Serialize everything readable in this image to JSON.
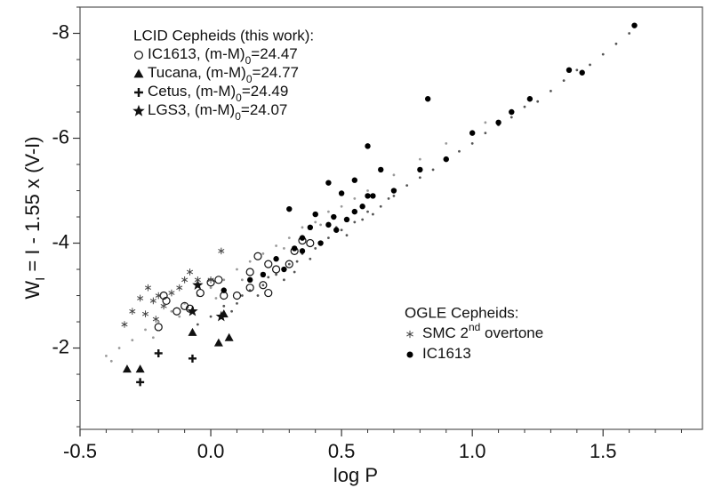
{
  "chart_data": {
    "type": "scatter",
    "x_label": "log P",
    "y_label": {
      "main": "W",
      "sub": "I",
      "rest": " = I - 1.55 x (V-I)"
    },
    "xlim": [
      -0.5,
      1.88
    ],
    "ylim": [
      -0.45,
      -8.5
    ],
    "xticks": [
      -0.5,
      {
        "value": 0,
        "label": "0.0"
      },
      0.5,
      {
        "value": 1,
        "label": "1.0"
      },
      1.5
    ],
    "yticks": [
      -8,
      -6,
      -4,
      -2
    ],
    "xminorticks": [
      -0.4,
      -0.3,
      -0.2,
      -0.1,
      0.1,
      0.2,
      0.3,
      0.4,
      0.6,
      0.7,
      0.8,
      0.9,
      1.1,
      1.2,
      1.3,
      1.4,
      1.6,
      1.7,
      1.8
    ],
    "yminorticks": [
      -8.5,
      -7.5,
      -7,
      -6.5,
      -5.5,
      -5,
      -4.5,
      -3.5,
      -3,
      -2.5,
      -1.5,
      -1,
      -0.5
    ],
    "legends": [
      {
        "title": "LCID Cepheids (this work):",
        "entries": [
          0,
          1,
          2,
          3
        ]
      },
      {
        "title": "OGLE Cepheids:",
        "entries": [
          4,
          5
        ]
      }
    ],
    "series": [
      {
        "name": {
          "main": "IC1613, (m-M)",
          "sub": "0",
          "rest": "=24.47"
        },
        "marker": "open-circle",
        "color": "#111111",
        "x": [
          -0.2,
          -0.18,
          -0.17,
          -0.13,
          -0.1,
          -0.08,
          -0.04,
          0.0,
          0.03,
          0.05,
          0.1,
          0.15,
          0.2,
          0.22,
          0.25,
          0.22,
          0.18,
          0.3,
          0.32,
          0.35,
          0.38,
          0.15
        ],
        "values": [
          -2.4,
          -3.0,
          -2.9,
          -2.7,
          -2.8,
          -2.75,
          -3.05,
          -3.25,
          -3.3,
          -3.0,
          -3.0,
          -3.15,
          -3.2,
          -3.05,
          -3.5,
          -3.6,
          -3.75,
          -3.6,
          -3.85,
          -4.05,
          -4.0,
          -3.45
        ]
      },
      {
        "name": {
          "main": "Tucana, (m-M)",
          "sub": "0",
          "rest": "=24.77"
        },
        "marker": "triangle",
        "color": "#111111",
        "x": [
          -0.32,
          -0.27,
          -0.07,
          0.03,
          0.07,
          0.05
        ],
        "values": [
          -1.6,
          -1.6,
          -2.3,
          -2.1,
          -2.2,
          -2.65
        ]
      },
      {
        "name": {
          "main": "Cetus, (m-M)",
          "sub": "0",
          "rest": "=24.49"
        },
        "marker": "plus",
        "color": "#111111",
        "x": [
          -0.27,
          -0.2,
          -0.07
        ],
        "values": [
          -1.35,
          -1.9,
          -1.8
        ]
      },
      {
        "name": {
          "main": "LGS3, (m-M)",
          "sub": "0",
          "rest": "=24.07"
        },
        "marker": "star",
        "color": "#111111",
        "x": [
          -0.07,
          0.04,
          -0.05
        ],
        "values": [
          -2.7,
          -2.6,
          -3.2
        ]
      },
      {
        "name": {
          "main": "SMC 2",
          "sup": "nd",
          "rest": " overtone"
        },
        "marker": "asterisk",
        "color": "#444444",
        "x": [
          -0.33,
          -0.3,
          -0.27,
          -0.25,
          -0.22,
          -0.2,
          -0.18,
          -0.15,
          -0.12,
          -0.1,
          -0.08,
          -0.05,
          0.0,
          0.04,
          -0.21,
          -0.24
        ],
        "values": [
          -2.45,
          -2.7,
          -2.95,
          -2.65,
          -2.9,
          -3.0,
          -2.8,
          -3.05,
          -3.15,
          -3.3,
          -3.45,
          -3.3,
          -3.3,
          -3.85,
          -2.55,
          -3.15
        ]
      },
      {
        "name": {
          "main": "IC1613"
        },
        "marker": "dot",
        "color": "#000000",
        "x": [
          1.62,
          1.37,
          1.42,
          0.83,
          1.22,
          1.0,
          0.6,
          0.3,
          0.5,
          0.45,
          0.55,
          0.65,
          0.7,
          0.4,
          0.35,
          0.38,
          0.42,
          0.45,
          0.48,
          0.52,
          0.58,
          0.62,
          0.8,
          0.9,
          1.1,
          1.15,
          0.25,
          0.28,
          0.32,
          0.2,
          0.15,
          0.05,
          0.55,
          0.35,
          0.6,
          0.47
        ],
        "values": [
          -8.15,
          -7.3,
          -7.25,
          -6.75,
          -6.75,
          -6.1,
          -5.85,
          -4.65,
          -4.95,
          -5.15,
          -5.2,
          -5.4,
          -5.0,
          -4.55,
          -4.1,
          -4.3,
          -4.0,
          -4.35,
          -4.25,
          -4.45,
          -4.7,
          -4.9,
          -5.4,
          -5.6,
          -6.3,
          -6.5,
          -3.7,
          -3.5,
          -3.9,
          -3.4,
          -3.3,
          -3.1,
          -4.6,
          -3.85,
          -4.9,
          -4.5
        ]
      },
      {
        "marker": "small",
        "color": "#9a9a9a",
        "x": [
          -0.4,
          -0.35,
          -0.3,
          -0.25,
          -0.2,
          -0.15,
          -0.1,
          -0.05,
          0.0,
          0.05,
          0.1,
          0.15,
          0.2,
          0.25,
          0.3,
          0.35,
          0.4,
          0.45,
          0.5,
          0.55,
          0.6,
          -0.38,
          -0.22,
          0.12,
          0.28,
          0.42,
          0.02,
          -0.12,
          0.7,
          0.8,
          0.9,
          1.05
        ],
        "values": [
          -1.85,
          -2.0,
          -2.15,
          -2.35,
          -2.5,
          -2.7,
          -2.85,
          -3.0,
          -3.15,
          -3.3,
          -3.5,
          -3.65,
          -3.8,
          -3.95,
          -4.1,
          -4.3,
          -4.4,
          -4.6,
          -4.7,
          -4.85,
          -5.0,
          -1.75,
          -2.2,
          -3.3,
          -3.9,
          -4.35,
          -2.95,
          -2.6,
          -5.3,
          -5.6,
          -5.9,
          -6.3
        ]
      },
      {
        "marker": "small",
        "color": "#555555",
        "x": [
          -0.05,
          0.0,
          0.05,
          0.1,
          0.12,
          0.15,
          0.2,
          0.22,
          0.25,
          0.3,
          0.33,
          0.35,
          0.4,
          0.42,
          0.45,
          0.5,
          0.55,
          0.6,
          0.65,
          0.7,
          0.75,
          0.8,
          0.85,
          0.9,
          0.95,
          1.0,
          1.05,
          1.1,
          1.15,
          1.2,
          1.25,
          1.3,
          1.35,
          1.4,
          1.45,
          1.5,
          1.55,
          1.6,
          0.28,
          0.38,
          0.48,
          0.58,
          0.68,
          0.18,
          0.08,
          0.32,
          0.52,
          0.62
        ],
        "values": [
          -2.45,
          -2.6,
          -2.8,
          -2.85,
          -3.0,
          -3.1,
          -3.2,
          -3.35,
          -3.4,
          -3.6,
          -3.65,
          -3.8,
          -3.9,
          -4.0,
          -4.1,
          -4.25,
          -4.4,
          -4.6,
          -4.7,
          -4.9,
          -5.1,
          -5.25,
          -5.4,
          -5.6,
          -5.75,
          -5.9,
          -6.1,
          -6.25,
          -6.4,
          -6.6,
          -6.7,
          -6.9,
          -7.1,
          -7.3,
          -7.4,
          -7.6,
          -7.8,
          -8.0,
          -3.3,
          -3.7,
          -4.3,
          -4.45,
          -4.85,
          -3.0,
          -2.7,
          -3.45,
          -4.15,
          -4.55
        ]
      }
    ]
  }
}
